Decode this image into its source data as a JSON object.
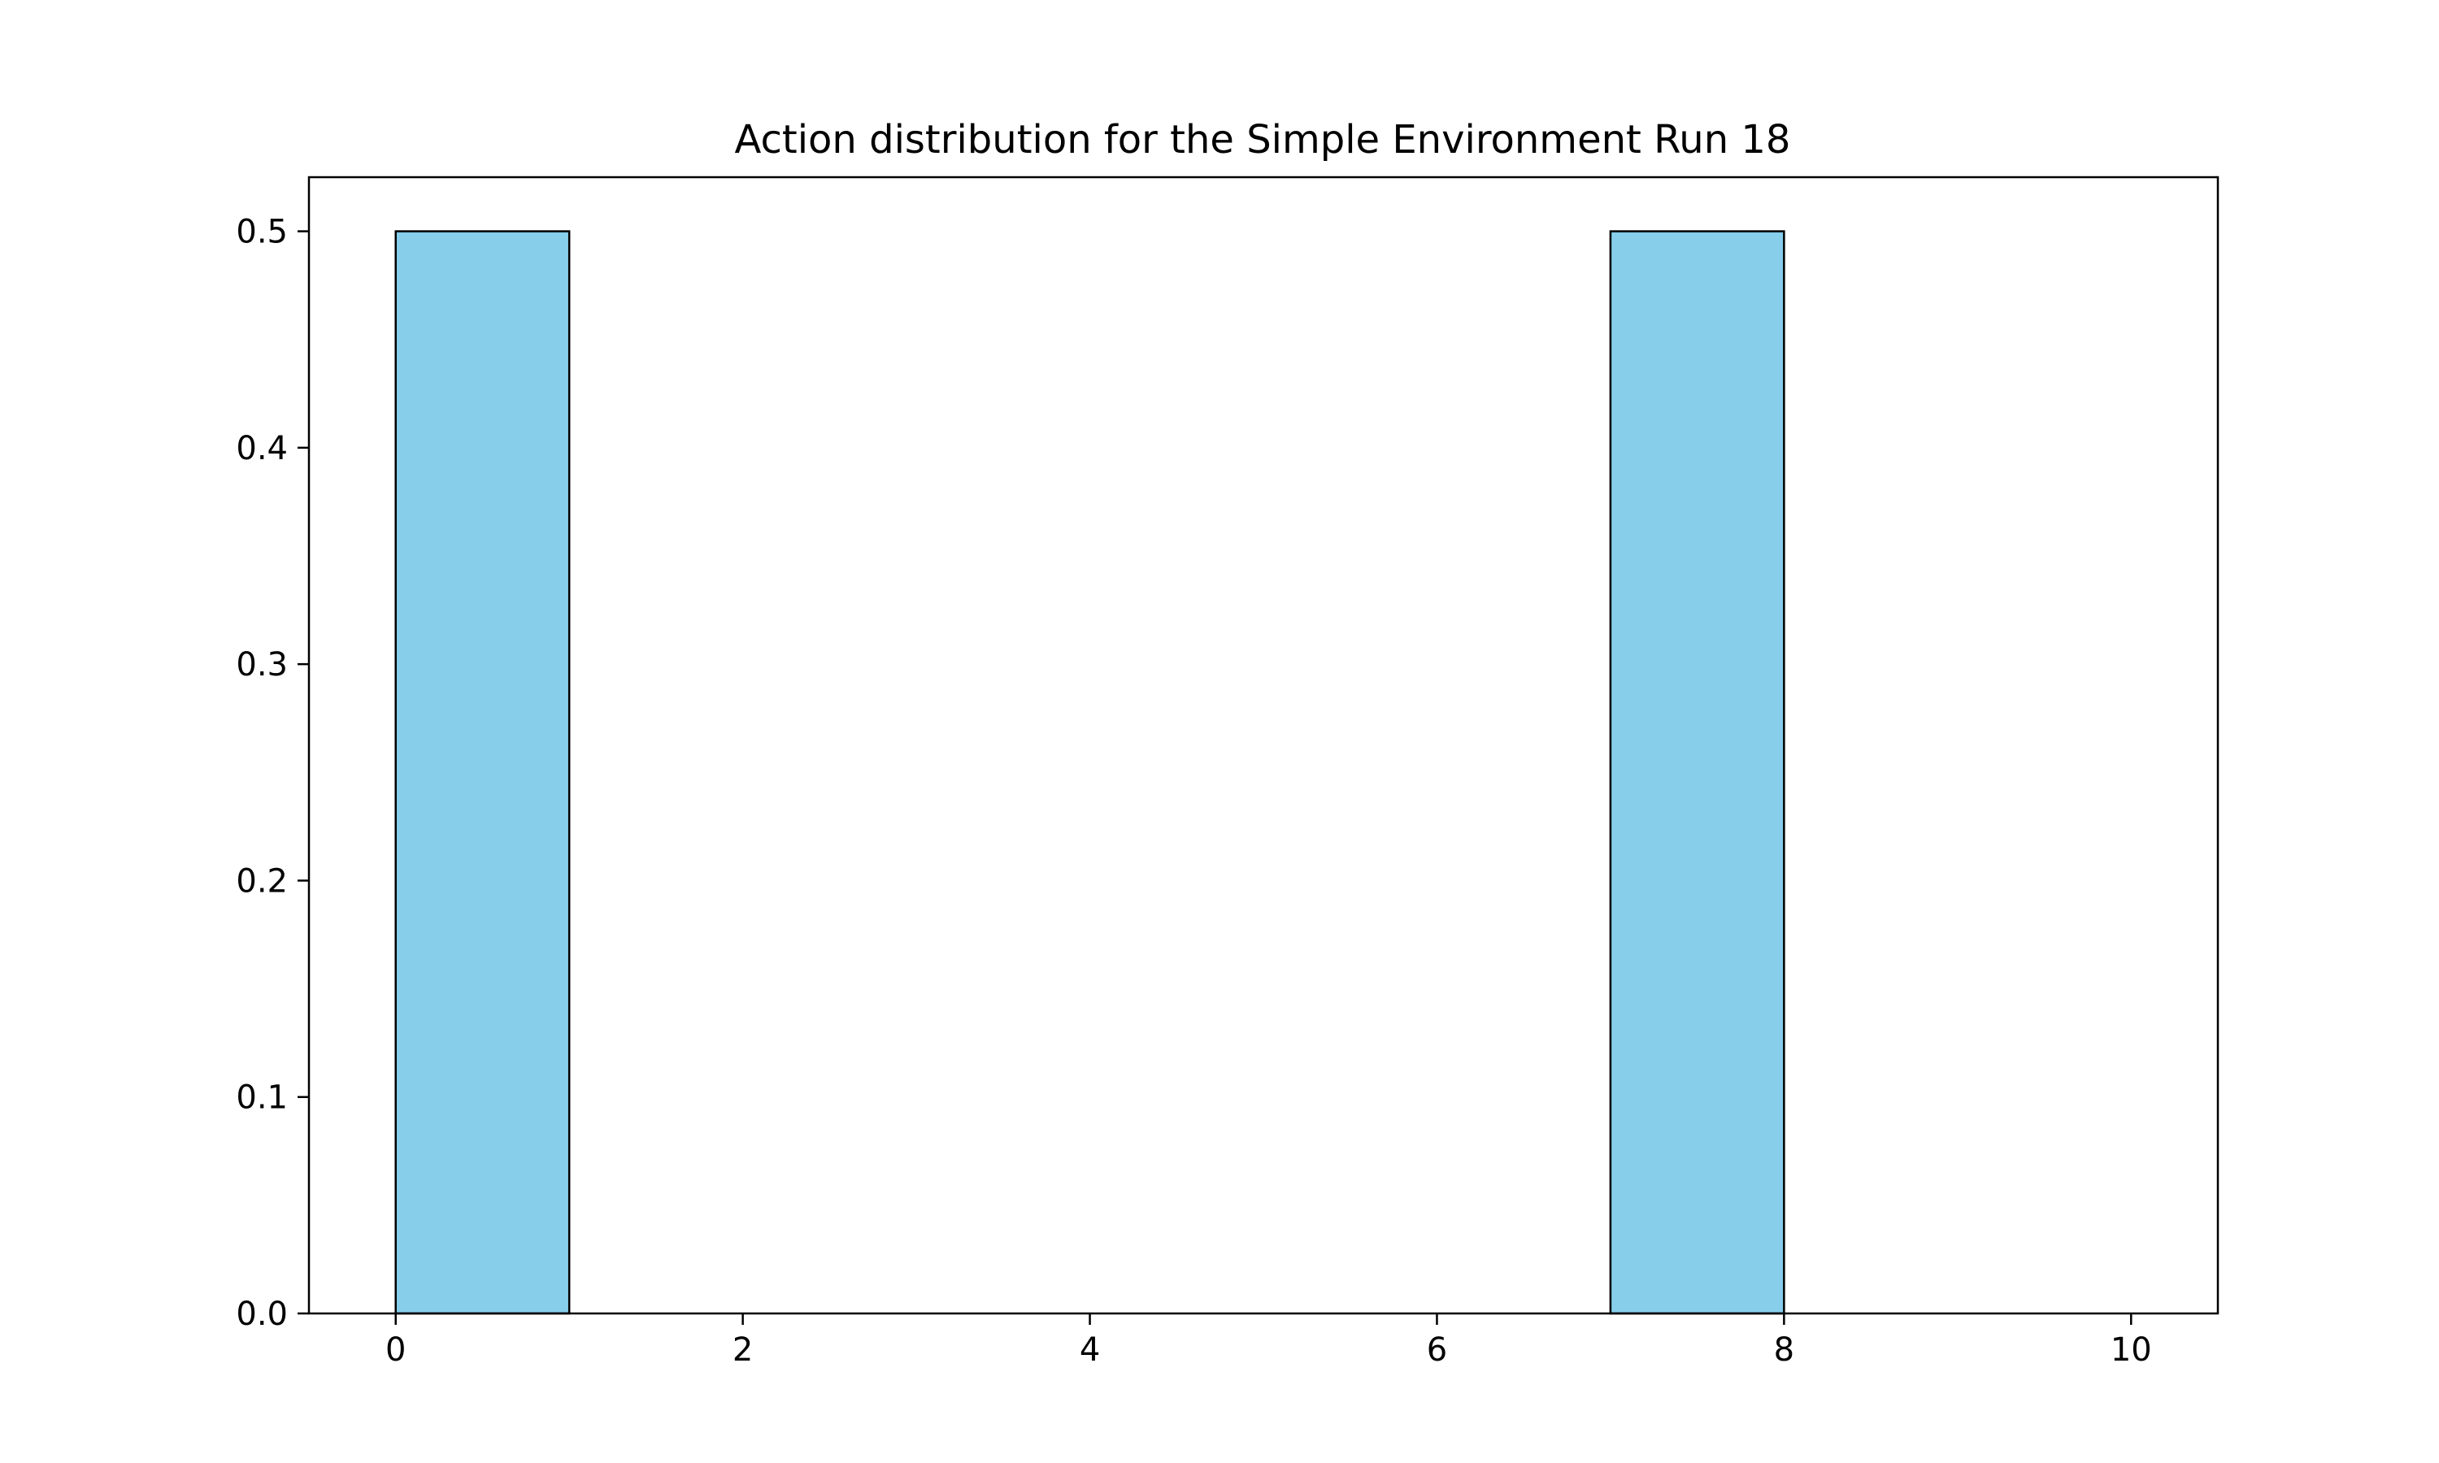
{
  "chart_data": {
    "type": "bar",
    "title": "Action distribution for the Simple Environment Run 18",
    "xlabel": "",
    "ylabel": "",
    "xlim": [
      -0.5,
      10.5
    ],
    "ylim": [
      0,
      0.525
    ],
    "xticks": [
      0,
      2,
      4,
      6,
      8,
      10
    ],
    "xtick_labels": [
      "0",
      "2",
      "4",
      "6",
      "8",
      "10"
    ],
    "yticks": [
      0.0,
      0.1,
      0.2,
      0.3,
      0.4,
      0.5
    ],
    "ytick_labels": [
      "0.0",
      "0.1",
      "0.2",
      "0.3",
      "0.4",
      "0.5"
    ],
    "bins": [
      {
        "x0": 0,
        "x1": 1,
        "value": 0.5
      },
      {
        "x0": 1,
        "x1": 2,
        "value": 0.0
      },
      {
        "x0": 2,
        "x1": 3,
        "value": 0.0
      },
      {
        "x0": 3,
        "x1": 4,
        "value": 0.0
      },
      {
        "x0": 4,
        "x1": 5,
        "value": 0.0
      },
      {
        "x0": 5,
        "x1": 6,
        "value": 0.0
      },
      {
        "x0": 6,
        "x1": 7,
        "value": 0.0
      },
      {
        "x0": 7,
        "x1": 8,
        "value": 0.5
      },
      {
        "x0": 8,
        "x1": 9,
        "value": 0.0
      },
      {
        "x0": 9,
        "x1": 10,
        "value": 0.0
      }
    ],
    "grid": false,
    "legend": "none",
    "bar_color": "#87CEEB",
    "edge_color": "#000000"
  }
}
